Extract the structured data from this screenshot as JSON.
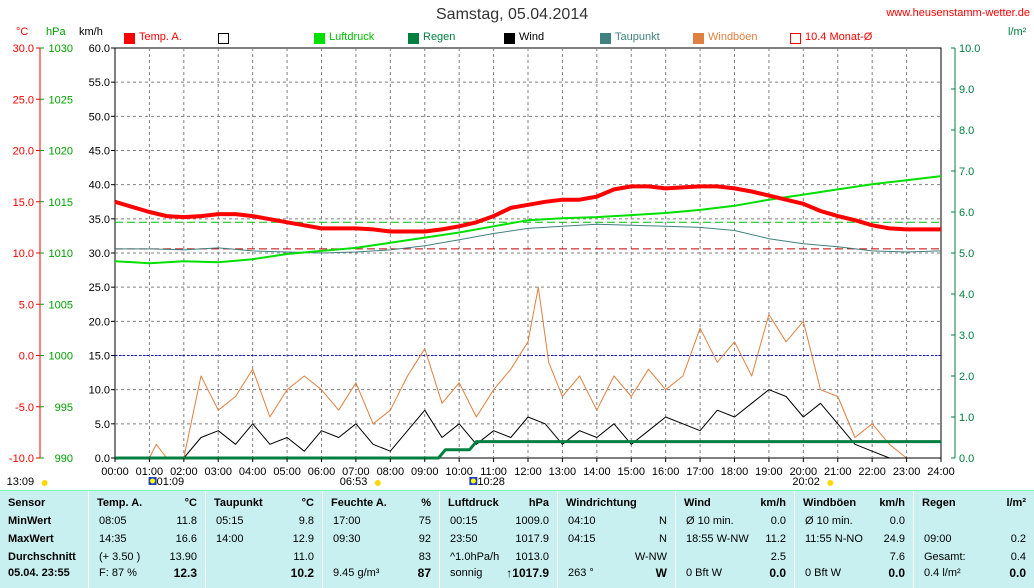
{
  "title": "Samstag, 05.04.2014",
  "website": "www.heusenstamm-wetter.de",
  "units": {
    "temp": "°C",
    "pressure": "hPa",
    "wind": "km/h",
    "rain": "l/m²"
  },
  "colors": {
    "temp": "#ff0000",
    "pressure": "#00e000",
    "rain": "#008040",
    "wind": "#000000",
    "dewpoint": "#408080",
    "gusts": "#e08040",
    "monthavg": "#ff0000",
    "axis_left": "#ff0000",
    "axis_press": "#00a000",
    "axis_rain": "#008040"
  },
  "legend": [
    {
      "label": "Temp. A.",
      "color": "#ff0000",
      "style": "fill"
    },
    {
      "label": "",
      "color": "#000000",
      "style": "outline"
    },
    {
      "label": "Luftdruck",
      "color": "#00e000",
      "style": "fill"
    },
    {
      "label": "Regen",
      "color": "#008040",
      "style": "fill"
    },
    {
      "label": "Wind",
      "color": "#000000",
      "style": "fill"
    },
    {
      "label": "Taupunkt",
      "color": "#408080",
      "style": "fill"
    },
    {
      "label": "Windböen",
      "color": "#e08040",
      "style": "fill"
    },
    {
      "label": "10.4 Monat-Ø",
      "color": "#ff0000",
      "style": "outline"
    }
  ],
  "below_axis_markers": [
    {
      "label": "13:09",
      "icon": "sun-icon",
      "hour": -2.8
    },
    {
      "label": "01:09",
      "icon": "moon-icon",
      "hour": 1.15
    },
    {
      "label": "06:53",
      "icon": "sun-icon",
      "hour": 6.88
    },
    {
      "label": "10:28",
      "icon": "moon-icon",
      "hour": 10.47
    },
    {
      "label": "20:02",
      "icon": "sun-icon",
      "hour": 20.03
    }
  ],
  "chart_data": {
    "type": "line",
    "x_unit": "hour",
    "xlim": [
      0,
      24
    ],
    "x_tick_labels": [
      "00:00",
      "01:00",
      "02:00",
      "03:00",
      "04:00",
      "05:00",
      "06:00",
      "07:00",
      "08:00",
      "09:00",
      "10:00",
      "11:00",
      "12:00",
      "13:00",
      "14:00",
      "15:00",
      "16:00",
      "17:00",
      "18:00",
      "19:00",
      "20:00",
      "21:00",
      "22:00",
      "23:00",
      "24:00"
    ],
    "axes": {
      "temp": {
        "label": "°C",
        "ticks": [
          "30.0",
          "25.0",
          "20.0",
          "15.0",
          "10.0",
          "5.0",
          "0.0",
          "-5.0",
          "-10.0"
        ],
        "lim": [
          -10,
          30
        ]
      },
      "pressure": {
        "label": "hPa",
        "ticks": [
          "1030",
          "1025",
          "1020",
          "1015",
          "1010",
          "1005",
          "1000",
          "995",
          "990"
        ],
        "lim": [
          990,
          1030
        ]
      },
      "wind": {
        "label": "km/h",
        "ticks": [
          "60.0",
          "55.0",
          "50.0",
          "45.0",
          "40.0",
          "35.0",
          "30.0",
          "25.0",
          "20.0",
          "15.0",
          "10.0",
          "5.0",
          "0.0"
        ],
        "lim": [
          0,
          60
        ]
      },
      "rain": {
        "label": "l/m²",
        "ticks": [
          "10.0",
          "9.0",
          "8.0",
          "7.0",
          "6.0",
          "5.0",
          "4.0",
          "3.0",
          "2.0",
          "1.0",
          "0.0"
        ],
        "lim": [
          0,
          10
        ]
      }
    },
    "grid": true,
    "reference_lines": [
      {
        "name": "temp-zero",
        "axis": "temp",
        "value": 0,
        "color": "#0000ff"
      },
      {
        "name": "month-avg-temp",
        "axis": "temp",
        "value": 10.4,
        "color": "#c00000"
      },
      {
        "name": "pressure-ref",
        "axis": "pressure",
        "value": 1013,
        "color": "#00c000"
      }
    ],
    "series": [
      {
        "name": "Temp. A.",
        "axis": "temp",
        "color": "#ff0000",
        "width": 4,
        "x": [
          0,
          0.5,
          1,
          1.5,
          2,
          2.5,
          3,
          3.5,
          4,
          4.5,
          5,
          5.5,
          6,
          6.5,
          7,
          7.5,
          8,
          8.5,
          9,
          9.5,
          10,
          10.5,
          11,
          11.5,
          12,
          12.5,
          13,
          13.5,
          14,
          14.5,
          15,
          15.5,
          16,
          16.5,
          17,
          17.5,
          18,
          18.5,
          19,
          19.5,
          20,
          20.5,
          21,
          21.5,
          22,
          22.5,
          23,
          23.5,
          24
        ],
        "y": [
          15.0,
          14.5,
          14.0,
          13.6,
          13.5,
          13.6,
          13.8,
          13.8,
          13.6,
          13.3,
          13.0,
          12.7,
          12.4,
          12.4,
          12.4,
          12.3,
          12.1,
          12.1,
          12.1,
          12.3,
          12.6,
          13.0,
          13.6,
          14.4,
          14.7,
          15.0,
          15.2,
          15.2,
          15.5,
          16.2,
          16.5,
          16.5,
          16.3,
          16.4,
          16.5,
          16.5,
          16.3,
          16.0,
          15.6,
          15.2,
          14.8,
          14.1,
          13.6,
          13.2,
          12.7,
          12.4,
          12.3,
          12.3,
          12.3
        ]
      },
      {
        "name": "Luftdruck",
        "axis": "pressure",
        "color": "#00e000",
        "width": 2,
        "x": [
          0,
          1,
          2,
          3,
          4,
          5,
          6,
          7,
          8,
          9,
          10,
          11,
          12,
          13,
          14,
          15,
          16,
          17,
          18,
          19,
          20,
          21,
          22,
          23,
          24
        ],
        "y": [
          1009.2,
          1009.0,
          1009.2,
          1009.1,
          1009.4,
          1009.9,
          1010.2,
          1010.5,
          1011.0,
          1011.5,
          1012.0,
          1012.6,
          1013.2,
          1013.4,
          1013.5,
          1013.7,
          1013.9,
          1014.2,
          1014.6,
          1015.2,
          1015.7,
          1016.2,
          1016.7,
          1017.1,
          1017.5
        ]
      },
      {
        "name": "Taupunkt",
        "axis": "temp",
        "color": "#408080",
        "width": 1,
        "x": [
          0,
          1,
          2,
          3,
          4,
          5,
          6,
          7,
          8,
          9,
          10,
          11,
          12,
          13,
          14,
          15,
          16,
          17,
          18,
          19,
          20,
          21,
          22,
          23,
          24
        ],
        "y": [
          10.4,
          10.4,
          10.3,
          10.5,
          10.2,
          10.1,
          10.0,
          10.1,
          10.3,
          10.7,
          11.3,
          11.9,
          12.4,
          12.6,
          12.8,
          12.7,
          12.6,
          12.5,
          12.2,
          11.4,
          10.9,
          10.6,
          10.2,
          10.1,
          10.2
        ]
      },
      {
        "name": "Regen",
        "axis": "rain",
        "color": "#008040",
        "width": 3,
        "x": [
          0,
          9.4,
          9.6,
          10.3,
          10.5,
          24
        ],
        "y": [
          0,
          0,
          0.2,
          0.2,
          0.4,
          0.4
        ]
      },
      {
        "name": "Wind",
        "axis": "wind",
        "color": "#000000",
        "width": 1,
        "x": [
          0,
          2,
          2.5,
          3,
          3.5,
          4,
          4.5,
          5,
          5.5,
          6,
          6.5,
          7,
          7.5,
          8,
          8.5,
          9,
          9.5,
          10,
          10.5,
          11,
          11.5,
          12,
          12.5,
          13,
          13.5,
          14,
          14.5,
          15,
          15.5,
          16,
          16.5,
          17,
          17.5,
          18,
          18.5,
          19,
          19.5,
          20,
          20.5,
          21,
          21.5,
          22,
          22.5,
          23,
          24
        ],
        "y": [
          0,
          0,
          3,
          4,
          2,
          5,
          2,
          3,
          1,
          4,
          3,
          5,
          2,
          1,
          4,
          7,
          3,
          5,
          2,
          4,
          3,
          6,
          5,
          2,
          4,
          3,
          5,
          2,
          4,
          6,
          5,
          4,
          7,
          6,
          8,
          10,
          9,
          6,
          8,
          5,
          2,
          1,
          0,
          0,
          0
        ]
      },
      {
        "name": "Windböen",
        "axis": "wind",
        "color": "#e08040",
        "width": 1,
        "x": [
          0,
          1,
          1.2,
          1.5,
          2,
          2.5,
          3,
          3.5,
          4,
          4.5,
          5,
          5.5,
          6,
          6.5,
          7,
          7.5,
          8,
          8.5,
          9,
          9.5,
          10,
          10.5,
          11,
          11.5,
          12,
          12.3,
          12.6,
          13,
          13.5,
          14,
          14.5,
          15,
          15.5,
          16,
          16.5,
          17,
          17.5,
          18,
          18.5,
          19,
          19.5,
          20,
          20.5,
          21,
          21.5,
          22,
          22.5,
          23,
          24
        ],
        "y": [
          0,
          0,
          2,
          0,
          0,
          12,
          7,
          9,
          13,
          6,
          10,
          12,
          10,
          7,
          11,
          5,
          7,
          12,
          16,
          8,
          11,
          6,
          10,
          13,
          17,
          25,
          14,
          9,
          12,
          7,
          12,
          9,
          13,
          10,
          12,
          19,
          14,
          17,
          12,
          21,
          17,
          20,
          10,
          9,
          3,
          5,
          2,
          0,
          0
        ]
      }
    ]
  },
  "stats": {
    "sensor": {
      "header": "Sensor",
      "rows": [
        "MinWert",
        "MaxWert",
        "Durchschnitt",
        "05.04. 23:55"
      ]
    },
    "temp": {
      "header": "Temp. A.",
      "unit": "°C",
      "rows": [
        [
          "08:05",
          "11.8"
        ],
        [
          "14:35",
          "16.6"
        ],
        [
          "(+ 3.50 )",
          "13.90"
        ],
        [
          "F: 87 %",
          "12.3"
        ]
      ]
    },
    "dew": {
      "header": "Taupunkt",
      "unit": "°C",
      "rows": [
        [
          "05:15",
          "9.8"
        ],
        [
          "14:00",
          "12.9"
        ],
        [
          "",
          "11.0"
        ],
        [
          "",
          "10.2"
        ]
      ]
    },
    "humid": {
      "header": "Feuchte A.",
      "unit": "%",
      "rows": [
        [
          "17:00",
          "75"
        ],
        [
          "09:30",
          "92"
        ],
        [
          "",
          "83"
        ],
        [
          "9.45 g/m³",
          "87"
        ]
      ]
    },
    "press": {
      "header": "Luftdruck",
      "unit": "hPa",
      "rows": [
        [
          "00:15",
          "1009.0"
        ],
        [
          "23:50",
          "1017.9"
        ],
        [
          "^1.0hPa/h",
          "1013.0"
        ],
        [
          "sonnig",
          "↑1017.9"
        ]
      ]
    },
    "dir": {
      "header": "Windrichtung",
      "rows": [
        [
          "04:10",
          "N"
        ],
        [
          "04:15",
          "N"
        ],
        [
          "",
          "W-NW"
        ],
        [
          "263 °",
          "W"
        ]
      ]
    },
    "wind": {
      "header": "Wind",
      "unit": "km/h",
      "rows": [
        [
          "Ø 10 min.",
          "0.0"
        ],
        [
          "18:55   W-NW",
          "11.2"
        ],
        [
          "",
          "2.5"
        ],
        [
          "0 Bft W",
          "0.0"
        ]
      ]
    },
    "gust": {
      "header": "Windböen",
      "unit": "km/h",
      "rows": [
        [
          "Ø 10 min.",
          "0.0"
        ],
        [
          "11:55   N-NO",
          "24.9"
        ],
        [
          "",
          "7.6"
        ],
        [
          "0 Bft W",
          "0.0"
        ]
      ]
    },
    "rain": {
      "header": "Regen",
      "unit": "l/m²",
      "rows": [
        [
          "",
          "",
          ""
        ],
        [
          "09:00",
          "0.2"
        ],
        [
          "Gesamt:",
          "0.4"
        ],
        [
          "0.4 l/m²",
          "0.0"
        ]
      ]
    }
  }
}
